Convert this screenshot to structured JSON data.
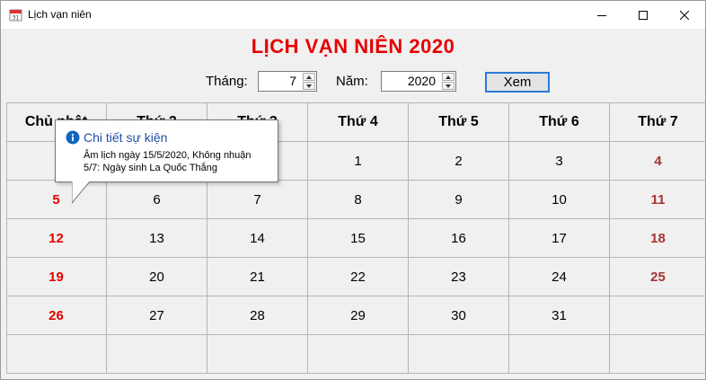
{
  "window": {
    "title": "Lịch vạn niên"
  },
  "app": {
    "heading": "LỊCH VẠN NIÊN 2020"
  },
  "controls": {
    "month_label": "Tháng:",
    "month_value": "7",
    "year_label": "Năm:",
    "year_value": "2020",
    "view_button": "Xem"
  },
  "calendar": {
    "headers": [
      "Chủ nhật",
      "Thứ 2",
      "Thứ 3",
      "Thứ 4",
      "Thứ 5",
      "Thứ 6",
      "Thứ 7"
    ],
    "weeks": [
      [
        "",
        "",
        "",
        "1",
        "2",
        "3",
        "4"
      ],
      [
        "5",
        "6",
        "7",
        "8",
        "9",
        "10",
        "11"
      ],
      [
        "12",
        "13",
        "14",
        "15",
        "16",
        "17",
        "18"
      ],
      [
        "19",
        "20",
        "21",
        "22",
        "23",
        "24",
        "25"
      ],
      [
        "26",
        "27",
        "28",
        "29",
        "30",
        "31",
        ""
      ],
      [
        "",
        "",
        "",
        "",
        "",
        "",
        ""
      ]
    ]
  },
  "tooltip": {
    "title": "Chi tiết sự kiện",
    "line1": "Âm lịch ngày 15/5/2020, Không nhuận",
    "line2": "5/7: Ngày sinh La Quốc Thắng"
  },
  "colors": {
    "title_red": "#e60000",
    "sunday_red": "#e60000",
    "saturday_red": "#a83232",
    "button_border": "#2a7ad6"
  },
  "icons": {
    "app": "calendar-icon",
    "info": "info-icon"
  }
}
